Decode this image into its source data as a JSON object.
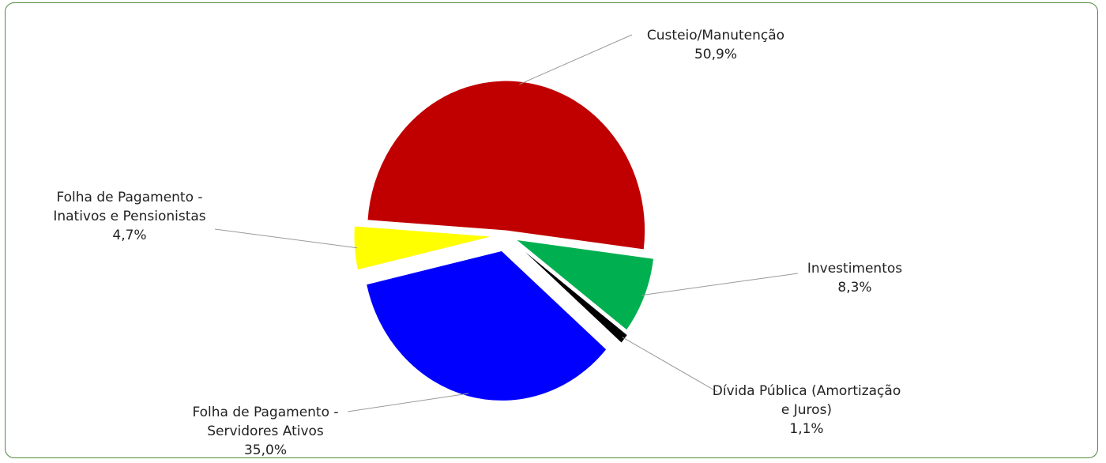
{
  "chart_data": {
    "type": "pie",
    "title": "",
    "slices": [
      {
        "label_lines": [
          "Custeio/Manutenção"
        ],
        "value": 50.9,
        "value_label": "50,9%",
        "color": "#c00000"
      },
      {
        "label_lines": [
          "Investimentos"
        ],
        "value": 8.3,
        "value_label": "8,3%",
        "color": "#00b050"
      },
      {
        "label_lines": [
          "Dívida Pública (Amortização",
          "e Juros)"
        ],
        "value": 1.1,
        "value_label": "1,1%",
        "color": "#000000"
      },
      {
        "label_lines": [
          "Folha de Pagamento -",
          "Servidores Ativos"
        ],
        "value": 35.0,
        "value_label": "35,0%",
        "color": "#0000ff"
      },
      {
        "label_lines": [
          "Folha de Pagamento -",
          "Inativos e Pensionistas"
        ],
        "value": 4.7,
        "value_label": "4,7%",
        "color": "#ffff00"
      }
    ],
    "legend": "none",
    "data_labels": "outside-with-leader-lines"
  }
}
